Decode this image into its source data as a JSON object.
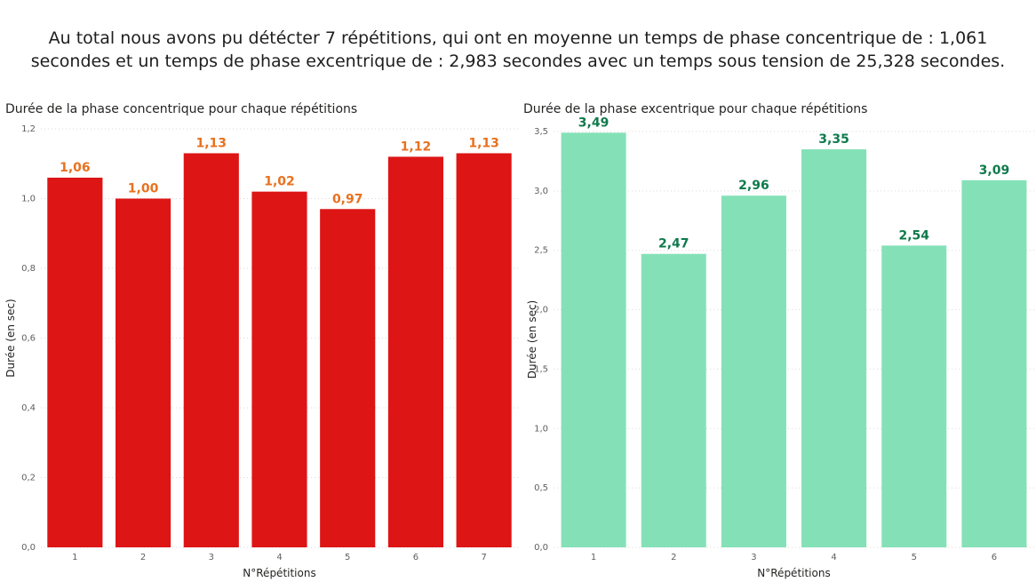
{
  "headline": {
    "line1": "Au total nous avons pu détécter 7 répétitions, qui ont en moyenne un temps de phase concentrique de : 1,061",
    "line2": "secondes et un temps de phase excentrique de : 2,983 secondes avec un temps sous tension de 25,328 secondes."
  },
  "chart_data": [
    {
      "type": "bar",
      "title": "Durée de la phase concentrique pour chaque répétitions",
      "xlabel": "N°Répétitions",
      "ylabel": "Durée (en sec)",
      "categories": [
        "1",
        "2",
        "3",
        "4",
        "5",
        "6",
        "7"
      ],
      "values": [
        1.06,
        1.0,
        1.13,
        1.02,
        0.97,
        1.12,
        1.13
      ],
      "data_labels": [
        "1,06",
        "1,00",
        "1,13",
        "1,02",
        "0,97",
        "1,12",
        "1,13"
      ],
      "ylim": [
        0,
        1.2
      ],
      "yticks": [
        0,
        0.2,
        0.4,
        0.6,
        0.8,
        1.0,
        1.2
      ],
      "ytick_labels": [
        "0,0",
        "0,2",
        "0,4",
        "0,6",
        "0,8",
        "1,0",
        "1,2"
      ],
      "grid": true,
      "bar_color": "#dd1515",
      "label_color": "#e8711f"
    },
    {
      "type": "bar",
      "title": "Durée de la phase excentrique pour chaque répétitions",
      "xlabel": "N°Répétitions",
      "ylabel": "Durée (en sec)",
      "categories": [
        "1",
        "2",
        "3",
        "4",
        "5",
        "6"
      ],
      "values": [
        3.49,
        2.47,
        2.96,
        3.35,
        2.54,
        3.09
      ],
      "data_labels": [
        "3,49",
        "2,47",
        "2,96",
        "3,35",
        "2,54",
        "3,09"
      ],
      "ylim": [
        0,
        3.5
      ],
      "yticks": [
        0,
        0.5,
        1.0,
        1.5,
        2.0,
        2.5,
        3.0,
        3.5
      ],
      "ytick_labels": [
        "0,0",
        "0,5",
        "1,0",
        "1,5",
        "2,0",
        "2,5",
        "3,0",
        "3,5"
      ],
      "grid": true,
      "bar_color": "#84e1b7",
      "label_color": "#0f7a4c"
    }
  ]
}
